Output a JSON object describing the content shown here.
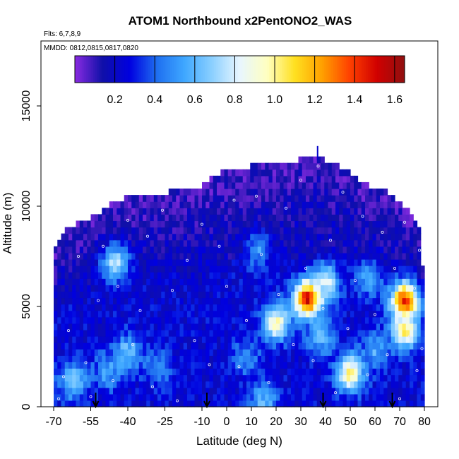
{
  "chart_data": {
    "type": "heatmap",
    "title": "ATOM1 Northbound x2PentONO2_WAS",
    "flights_note": "Flts: 6,7,8,9",
    "dates_note": "MMDD: 0812,0815,0817,0820",
    "xlabel": "Latitude (deg N)",
    "ylabel": "Altitude (m)",
    "xlim": [
      -70,
      80
    ],
    "ylim": [
      0,
      16500
    ],
    "x_ticks": [
      -70,
      -55,
      -40,
      -25,
      -10,
      0,
      10,
      20,
      30,
      40,
      50,
      60,
      70,
      80
    ],
    "y_ticks": [
      0,
      5000,
      10000,
      15000
    ],
    "colorbar": {
      "range": [
        0,
        1.65
      ],
      "tick_values": [
        0.2,
        0.4,
        0.6,
        0.8,
        1.0,
        1.2,
        1.4,
        1.6
      ],
      "tick_labels": [
        "0.2",
        "0.4",
        "0.6",
        "0.8",
        "1.0",
        "1.2",
        "1.4",
        "1.6"
      ],
      "colors": [
        "#8a2be2",
        "#1010a8",
        "#0000e0",
        "#1f70f0",
        "#3fa8ff",
        "#8cd0ff",
        "#e8f6ff",
        "#ffffc0",
        "#ffe020",
        "#ffa000",
        "#ff4000",
        "#d00000",
        "#901010"
      ]
    },
    "profile_markers_lat": [
      -53,
      -8,
      39,
      67
    ],
    "altitude_ceiling_profile": {
      "lat": [
        -70,
        -65,
        -57,
        -50,
        -45,
        -35,
        -27,
        -20,
        -10,
        -5,
        0,
        10,
        20,
        28,
        35,
        40,
        45,
        50,
        55,
        60,
        65,
        70,
        75,
        78,
        80
      ],
      "alt": [
        7900,
        8900,
        9300,
        9800,
        10300,
        10600,
        10600,
        10900,
        11000,
        11500,
        11900,
        12000,
        12000,
        12300,
        12700,
        12300,
        12000,
        11700,
        11200,
        10900,
        10700,
        10200,
        9700,
        9000,
        6000
      ]
    },
    "concentration_field": {
      "background": 0.25,
      "upper_troposphere": 0.08,
      "enhancements": [
        {
          "lat": -40,
          "alt": 2700,
          "value": 0.65
        },
        {
          "lat": -62,
          "alt": 1300,
          "value": 0.7
        },
        {
          "lat": -48,
          "alt": 1800,
          "value": 0.55
        },
        {
          "lat": -28,
          "alt": 2000,
          "value": 0.5
        },
        {
          "lat": -45,
          "alt": 7200,
          "value": 0.75
        },
        {
          "lat": 15,
          "alt": 300,
          "value": 0.6
        },
        {
          "lat": 20,
          "alt": 4200,
          "value": 0.95
        },
        {
          "lat": 33,
          "alt": 5400,
          "value": 1.55
        },
        {
          "lat": 40,
          "alt": 6200,
          "value": 0.8
        },
        {
          "lat": 38,
          "alt": 3500,
          "value": 0.6
        },
        {
          "lat": 50,
          "alt": 1700,
          "value": 1.0
        },
        {
          "lat": 72,
          "alt": 5300,
          "value": 1.45
        },
        {
          "lat": 72,
          "alt": 3800,
          "value": 1.0
        },
        {
          "lat": 60,
          "alt": 2800,
          "value": 0.55
        },
        {
          "lat": 58,
          "alt": 6400,
          "value": 0.55
        },
        {
          "lat": 8,
          "alt": 2500,
          "value": 0.5
        },
        {
          "lat": 13,
          "alt": 7800,
          "value": 0.5
        }
      ]
    },
    "sample_points": [
      {
        "lat": -68,
        "alt": 400
      },
      {
        "lat": -66,
        "alt": 1500
      },
      {
        "lat": -64,
        "alt": 3800
      },
      {
        "lat": -60,
        "alt": 7500
      },
      {
        "lat": -57,
        "alt": 2200
      },
      {
        "lat": -55,
        "alt": 500
      },
      {
        "lat": -52,
        "alt": 5300
      },
      {
        "lat": -50,
        "alt": 8000
      },
      {
        "lat": -46,
        "alt": 1300
      },
      {
        "lat": -44,
        "alt": 6000
      },
      {
        "lat": -40,
        "alt": 9300
      },
      {
        "lat": -38,
        "alt": 3100
      },
      {
        "lat": -35,
        "alt": 4800
      },
      {
        "lat": -32,
        "alt": 8500
      },
      {
        "lat": -30,
        "alt": 1000
      },
      {
        "lat": -26,
        "alt": 9800
      },
      {
        "lat": -22,
        "alt": 5800
      },
      {
        "lat": -20,
        "alt": 300
      },
      {
        "lat": -16,
        "alt": 7300
      },
      {
        "lat": -13,
        "alt": 3300
      },
      {
        "lat": -10,
        "alt": 9100
      },
      {
        "lat": -7,
        "alt": 2100
      },
      {
        "lat": -3,
        "alt": 8000
      },
      {
        "lat": 0,
        "alt": 6000
      },
      {
        "lat": 3,
        "alt": 10300
      },
      {
        "lat": 5,
        "alt": 2000
      },
      {
        "lat": 8,
        "alt": 4300
      },
      {
        "lat": 12,
        "alt": 10500
      },
      {
        "lat": 14,
        "alt": 7600
      },
      {
        "lat": 17,
        "alt": 1200
      },
      {
        "lat": 21,
        "alt": 5600
      },
      {
        "lat": 24,
        "alt": 9900
      },
      {
        "lat": 27,
        "alt": 3100
      },
      {
        "lat": 30,
        "alt": 11300
      },
      {
        "lat": 32,
        "alt": 6900
      },
      {
        "lat": 35,
        "alt": 2300
      },
      {
        "lat": 37,
        "alt": 12000
      },
      {
        "lat": 39,
        "alt": 4900
      },
      {
        "lat": 42,
        "alt": 8300
      },
      {
        "lat": 44,
        "alt": 700
      },
      {
        "lat": 47,
        "alt": 10700
      },
      {
        "lat": 49,
        "alt": 3900
      },
      {
        "lat": 52,
        "alt": 6300
      },
      {
        "lat": 55,
        "alt": 9500
      },
      {
        "lat": 57,
        "alt": 1600
      },
      {
        "lat": 60,
        "alt": 4600
      },
      {
        "lat": 63,
        "alt": 8700
      },
      {
        "lat": 65,
        "alt": 2600
      },
      {
        "lat": 68,
        "alt": 6900
      },
      {
        "lat": 70,
        "alt": 400
      },
      {
        "lat": 72,
        "alt": 9200
      },
      {
        "lat": 74,
        "alt": 3500
      },
      {
        "lat": 76,
        "alt": 5900
      },
      {
        "lat": 77,
        "alt": 1800
      },
      {
        "lat": 78,
        "alt": 7800
      },
      {
        "lat": 79,
        "alt": 2900
      }
    ]
  }
}
